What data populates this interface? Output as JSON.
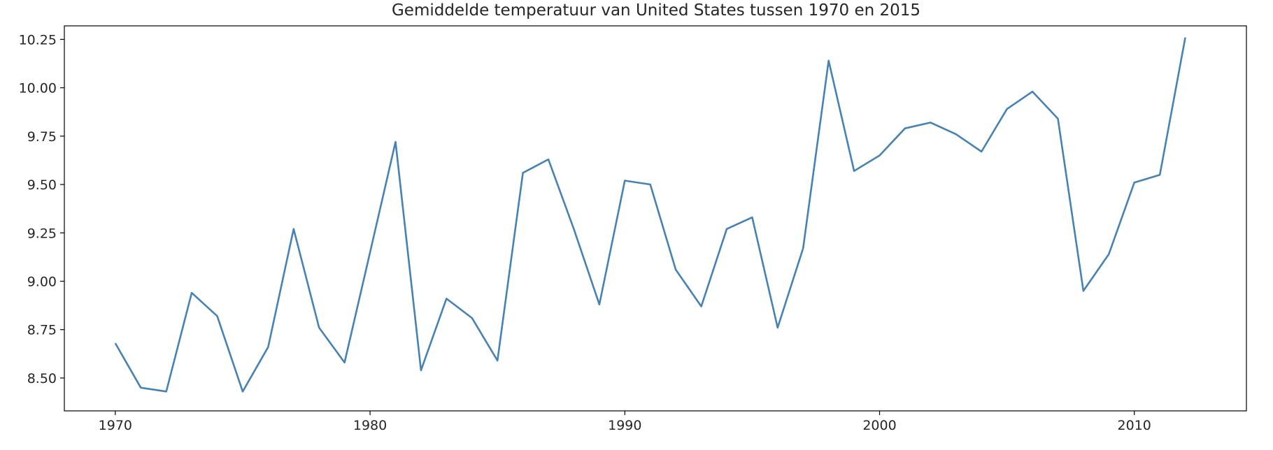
{
  "chart_data": {
    "type": "line",
    "title": "Gemiddelde temperatuur van United States tussen 1970 en 2015",
    "xlabel": "",
    "ylabel": "",
    "xlim": [
      1968,
      2014.4
    ],
    "ylim": [
      8.33,
      10.32
    ],
    "grid": false,
    "legend": "none",
    "x_ticks": [
      1970,
      1980,
      1990,
      2000,
      2010
    ],
    "x_tick_labels": [
      "1970",
      "1980",
      "1990",
      "2000",
      "2010"
    ],
    "y_ticks": [
      8.5,
      8.75,
      9.0,
      9.25,
      9.5,
      9.75,
      10.0,
      10.25
    ],
    "y_tick_labels": [
      "8.50",
      "8.75",
      "9.00",
      "9.25",
      "9.50",
      "9.75",
      "10.00",
      "10.25"
    ],
    "series": [
      {
        "color": "#4682b4",
        "x": [
          1970,
          1971,
          1972,
          1973,
          1974,
          1975,
          1976,
          1977,
          1978,
          1979,
          1980,
          1981,
          1982,
          1983,
          1984,
          1985,
          1986,
          1987,
          1988,
          1989,
          1990,
          1991,
          1992,
          1993,
          1994,
          1995,
          1996,
          1997,
          1998,
          1999,
          2000,
          2001,
          2002,
          2003,
          2004,
          2005,
          2006,
          2007,
          2008,
          2009,
          2010,
          2011,
          2012
        ],
        "y": [
          8.68,
          8.45,
          8.43,
          8.94,
          8.82,
          8.43,
          8.66,
          9.27,
          8.76,
          8.58,
          9.15,
          9.72,
          8.54,
          8.91,
          8.81,
          8.59,
          9.56,
          9.63,
          9.27,
          8.88,
          9.52,
          9.5,
          9.06,
          8.87,
          9.27,
          9.33,
          8.76,
          9.17,
          10.14,
          9.57,
          9.65,
          9.79,
          9.82,
          9.76,
          9.67,
          9.89,
          9.98,
          9.84,
          8.95,
          9.14,
          9.51,
          9.55,
          10.26
        ]
      }
    ]
  }
}
